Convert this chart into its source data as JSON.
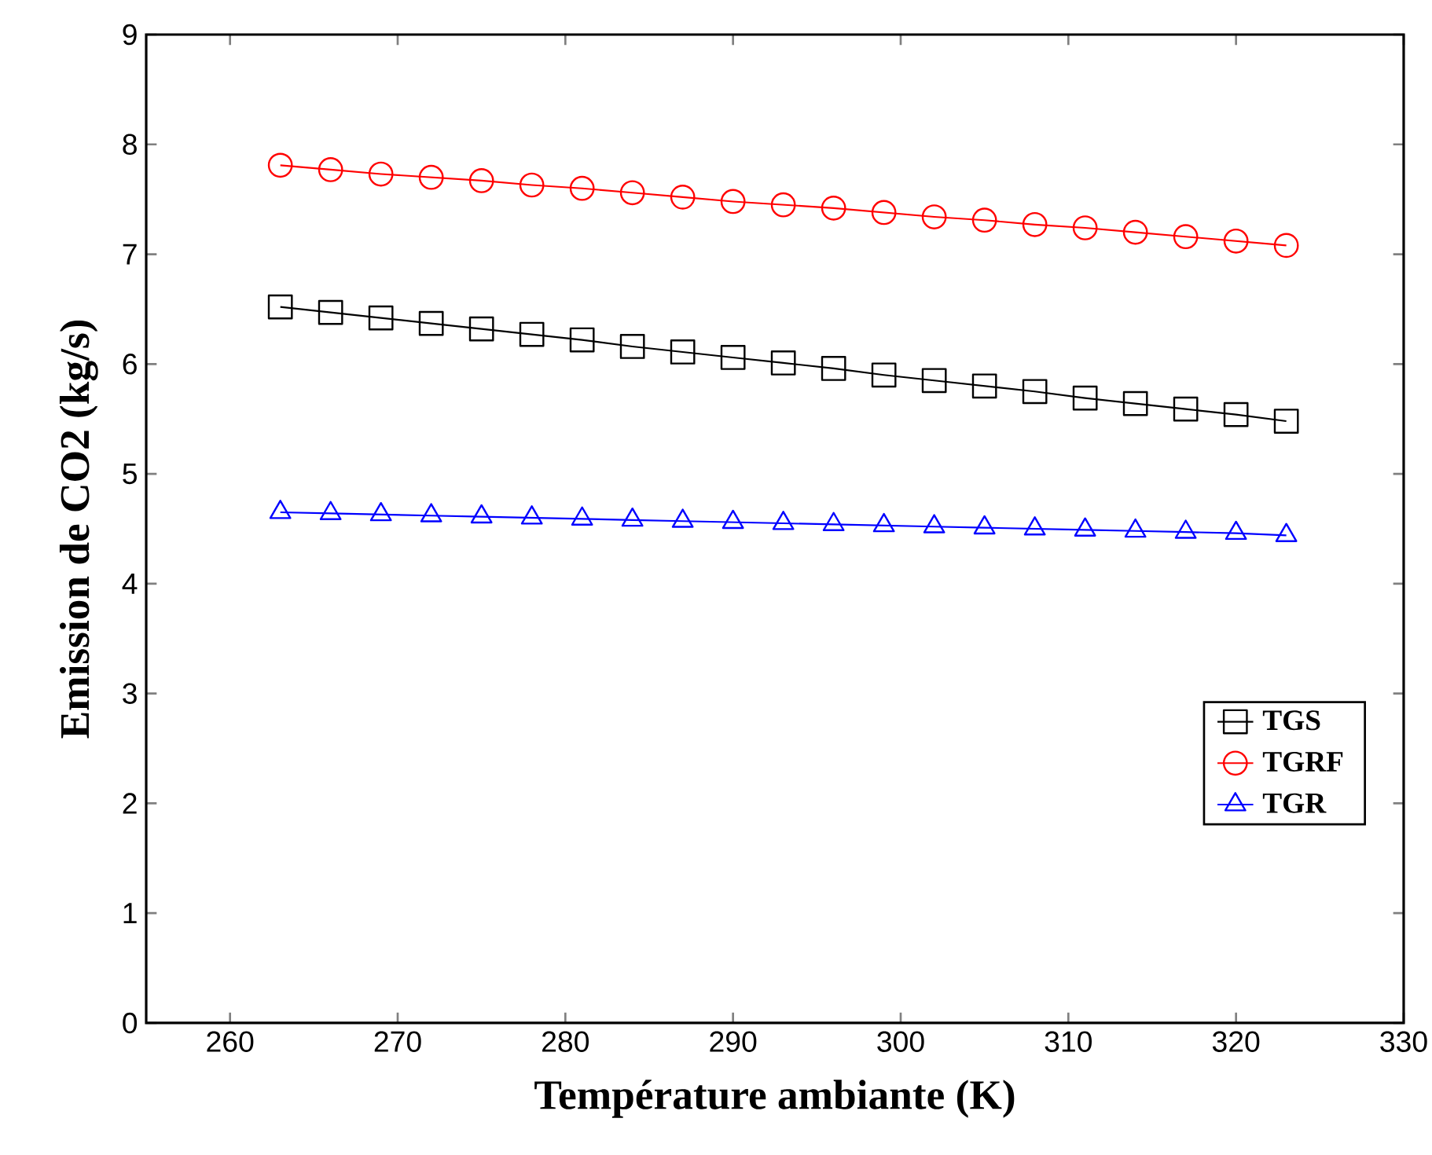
{
  "chart_data": {
    "type": "line",
    "xlabel": "Température ambiante (K)",
    "ylabel": "Emission de CO2 (kg/s)",
    "x": [
      263,
      266,
      269,
      272,
      275,
      278,
      281,
      284,
      287,
      290,
      293,
      296,
      299,
      302,
      305,
      308,
      311,
      314,
      317,
      320,
      323
    ],
    "series": [
      {
        "name": "TGS",
        "color": "#000000",
        "marker": "square",
        "values": [
          6.52,
          6.47,
          6.42,
          6.37,
          6.32,
          6.27,
          6.22,
          6.16,
          6.11,
          6.06,
          6.01,
          5.96,
          5.9,
          5.85,
          5.8,
          5.75,
          5.69,
          5.64,
          5.59,
          5.54,
          5.48
        ]
      },
      {
        "name": "TGRF",
        "color": "#ff0000",
        "marker": "circle",
        "values": [
          7.81,
          7.77,
          7.73,
          7.7,
          7.67,
          7.63,
          7.6,
          7.56,
          7.52,
          7.48,
          7.45,
          7.42,
          7.38,
          7.34,
          7.31,
          7.27,
          7.24,
          7.2,
          7.16,
          7.12,
          7.08
        ]
      },
      {
        "name": "TGR",
        "color": "#0000ff",
        "marker": "triangle",
        "values": [
          4.65,
          4.64,
          4.63,
          4.62,
          4.61,
          4.6,
          4.59,
          4.58,
          4.57,
          4.56,
          4.55,
          4.54,
          4.53,
          4.52,
          4.51,
          4.5,
          4.49,
          4.48,
          4.47,
          4.46,
          4.44
        ]
      }
    ],
    "xlim": [
      255,
      330
    ],
    "xticks": [
      260,
      270,
      280,
      290,
      300,
      310,
      320,
      330
    ],
    "ylim": [
      0,
      9
    ],
    "yticks": [
      0,
      1,
      2,
      3,
      4,
      5,
      6,
      7,
      8,
      9
    ],
    "legend": "right",
    "line_style": "solid",
    "grid": false
  }
}
